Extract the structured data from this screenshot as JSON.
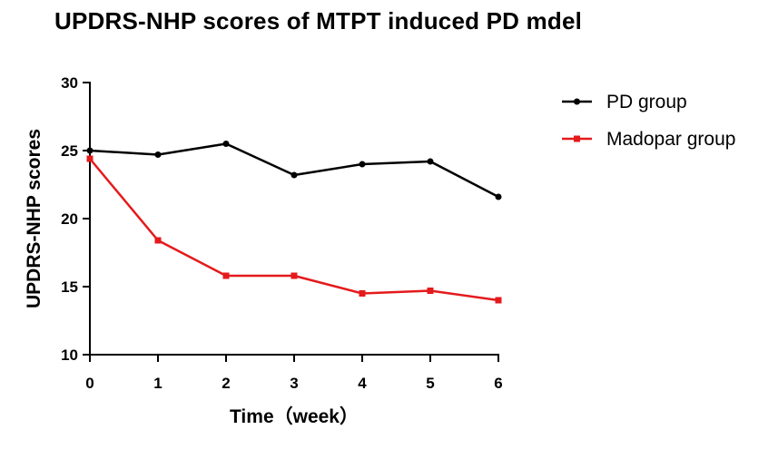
{
  "chart_data": {
    "type": "line",
    "title": "UPDRS-NHP scores of MTPT induced PD mdel",
    "xlabel": "Time（week）",
    "ylabel": "UPDRS-NHP scores",
    "x": [
      0,
      1,
      2,
      3,
      4,
      5,
      6
    ],
    "xticks": [
      "0",
      "1",
      "2",
      "3",
      "4",
      "5",
      "6"
    ],
    "xlim": [
      0,
      6
    ],
    "ylim": [
      10,
      30
    ],
    "yticks": [
      "10",
      "15",
      "20",
      "25",
      "30"
    ],
    "grid": false,
    "legend": "right",
    "series": [
      {
        "name": "PD group",
        "color": "#000000",
        "marker": "circle",
        "values": [
          25.0,
          24.7,
          25.5,
          23.2,
          24.0,
          24.2,
          21.6
        ]
      },
      {
        "name": "Madopar group",
        "color": "#e41a1c",
        "marker": "square",
        "values": [
          24.4,
          18.4,
          15.8,
          15.8,
          14.5,
          14.7,
          14.0
        ]
      }
    ]
  }
}
